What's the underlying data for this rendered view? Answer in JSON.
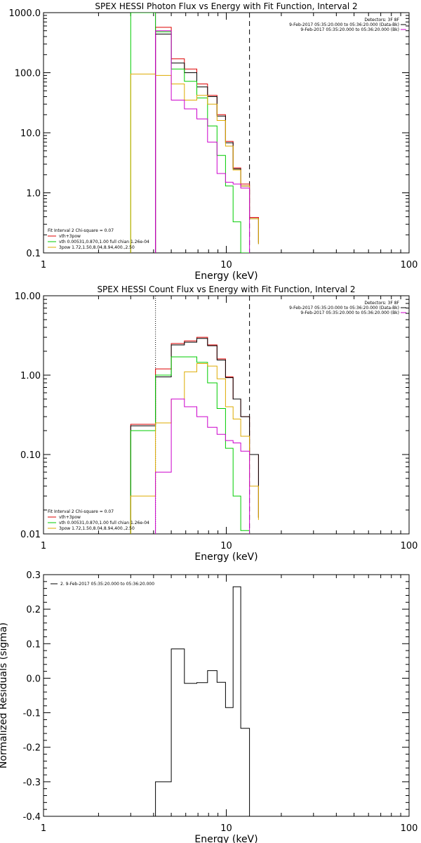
{
  "chart_data": [
    {
      "type": "line",
      "title": "SPEX HESSI Photon Flux vs Energy with Fit Function, Interval 2",
      "xlabel": "Energy (keV)",
      "ylabel": "",
      "xscale": "log",
      "yscale": "log",
      "xlim": [
        1,
        100
      ],
      "ylim": [
        0.1,
        1000
      ],
      "xticks": [
        1,
        10,
        100
      ],
      "xtick_labels": [
        "1",
        "10",
        "100"
      ],
      "yticks": [
        0.1,
        1,
        10,
        100,
        1000
      ],
      "ytick_labels": [
        "0.1",
        "1.0",
        "10.0",
        "100.0",
        "1000.0"
      ],
      "vlines": [
        {
          "x": 4.1,
          "style": "solid",
          "color": "#cc00cc"
        },
        {
          "x": 13.4,
          "style": "dashed",
          "color": "#000000"
        }
      ],
      "legend_topright": [
        {
          "text": "Detectors: 3F 8F",
          "color": "#000000"
        },
        {
          "text": "9-Feb-2017 05:35:20.000 to 05:36:20.000 (Data-Bk)",
          "color": "#000000"
        },
        {
          "text": "9-Feb-2017 05:35:20.000 to 05:36:20.000 (Bk)",
          "color": "#cc00cc"
        }
      ],
      "legend_bottomleft": [
        {
          "text": "Fit Interval 2   Chi-square = 0.07",
          "color": "#000000"
        },
        {
          "text": "vth+3pow",
          "color": "#dd0000"
        },
        {
          "text": "vth 0.00531,0.870,1.00  full chian 1.26e-04",
          "color": "#00cc00"
        },
        {
          "text": "3pow 1.72,1.50,8.04,8.94,400.,2.50",
          "color": "#ddaa00"
        }
      ],
      "bin_edges": [
        3.0,
        4.1,
        5.0,
        5.9,
        6.9,
        7.9,
        8.9,
        9.9,
        10.9,
        12.0,
        13.4,
        15.0
      ],
      "series": [
        {
          "name": "vth+3pow",
          "color": "#dd0000",
          "values": [
            null,
            570,
            170,
            115,
            65,
            42,
            20,
            7.2,
            2.6,
            1.4,
            0.39,
            0.15
          ]
        },
        {
          "name": "",
          "color": "#000000",
          "values": [
            null,
            440,
            145,
            100,
            58,
            40,
            19,
            6.8,
            2.5,
            1.3,
            0.37,
            0.14
          ]
        },
        {
          "name": "",
          "color": "#00cc00",
          "values": [
            1000,
            480,
            115,
            72,
            38,
            13,
            4.2,
            1.3,
            0.33,
            0.1,
            null,
            null
          ]
        },
        {
          "name": "",
          "color": "#ddaa00",
          "values": [
            95,
            90,
            65,
            35,
            42,
            30,
            16,
            6,
            2.4,
            1.3,
            0.37,
            0.14
          ]
        },
        {
          "name": "",
          "color": "#cc00cc",
          "values": [
            null,
            500,
            35,
            25,
            17,
            7,
            2.1,
            1.5,
            1.4,
            1.2,
            null,
            null
          ]
        }
      ]
    },
    {
      "type": "line",
      "title": "SPEX HESSI Count Flux vs Energy with Fit Function, Interval 2",
      "xlabel": "Energy (keV)",
      "ylabel": "",
      "xscale": "log",
      "yscale": "log",
      "xlim": [
        1,
        100
      ],
      "ylim": [
        0.01,
        10
      ],
      "xticks": [
        1,
        10,
        100
      ],
      "xtick_labels": [
        "1",
        "10",
        "100"
      ],
      "yticks": [
        0.01,
        0.1,
        1,
        10
      ],
      "ytick_labels": [
        "0.01",
        "0.10",
        "1.00",
        "10.00"
      ],
      "vlines": [
        {
          "x": 4.1,
          "style": "dotted",
          "color": "#000000"
        },
        {
          "x": 13.4,
          "style": "dashed",
          "color": "#000000"
        }
      ],
      "legend_topright": [
        {
          "text": "Detectors: 3F 8F",
          "color": "#000000"
        },
        {
          "text": "9-Feb-2017 05:35:20.000 to 05:36:20.000 (Data-Bk)",
          "color": "#000000"
        },
        {
          "text": "9-Feb-2017 05:35:20.000 to 05:36:20.000 (Bk)",
          "color": "#cc00cc"
        }
      ],
      "legend_bottomleft": [
        {
          "text": "Fit Interval 2   Chi-square = 0.07",
          "color": "#000000"
        },
        {
          "text": "vth+3pow",
          "color": "#dd0000"
        },
        {
          "text": "vth 0.00531,0.870,1.00  full chian 1.26e-04",
          "color": "#00cc00"
        },
        {
          "text": "3pow 1.72,1.50,8.04,8.94,400.,2.50",
          "color": "#ddaa00"
        }
      ],
      "bin_edges": [
        3.0,
        4.1,
        5.0,
        5.9,
        6.9,
        7.9,
        8.9,
        9.9,
        10.9,
        12.0,
        13.4,
        15.0
      ],
      "series": [
        {
          "name": "vth+3pow",
          "color": "#dd0000",
          "values": [
            0.24,
            1.2,
            2.5,
            2.7,
            3.0,
            2.4,
            1.6,
            0.95,
            0.5,
            0.3,
            0.1,
            0.016
          ]
        },
        {
          "name": "",
          "color": "#000000",
          "values": [
            0.23,
            0.95,
            2.4,
            2.6,
            2.9,
            2.35,
            1.55,
            0.93,
            0.5,
            0.3,
            0.1,
            0.016
          ]
        },
        {
          "name": "",
          "color": "#00cc00",
          "values": [
            0.2,
            1.0,
            1.7,
            1.7,
            1.45,
            0.8,
            0.38,
            0.12,
            0.03,
            0.011,
            null,
            null
          ]
        },
        {
          "name": "",
          "color": "#ddaa00",
          "values": [
            0.03,
            0.25,
            0.5,
            1.1,
            1.4,
            1.3,
            0.9,
            0.4,
            0.28,
            0.17,
            0.04,
            0.015
          ]
        },
        {
          "name": "",
          "color": "#cc00cc",
          "values": [
            null,
            0.06,
            0.5,
            0.4,
            0.3,
            0.22,
            0.18,
            0.15,
            0.14,
            0.11,
            null,
            null
          ]
        }
      ]
    },
    {
      "type": "line",
      "title": "",
      "xlabel": "Energy (keV)",
      "ylabel": "Normalized Residuals (sigma)",
      "xscale": "log",
      "yscale": "linear",
      "xlim": [
        1,
        100
      ],
      "ylim": [
        -0.4,
        0.3
      ],
      "xticks": [
        1,
        10,
        100
      ],
      "xtick_labels": [
        "1",
        "10",
        "100"
      ],
      "yticks": [
        -0.4,
        -0.3,
        -0.2,
        -0.1,
        0.0,
        0.1,
        0.2,
        0.3
      ],
      "ytick_labels": [
        "-0.4",
        "-0.3",
        "-0.2",
        "-0.1",
        "0.0",
        "0.1",
        "0.2",
        "0.3"
      ],
      "legend": [
        {
          "text": "2.  9-Feb-2017 05:35:20.000 to 05:36:20.000",
          "color": "#000000"
        }
      ],
      "bin_edges": [
        4.1,
        5.0,
        5.9,
        6.9,
        7.9,
        8.9,
        9.9,
        10.9,
        12.0,
        13.4
      ],
      "series": [
        {
          "name": "",
          "color": "#000000",
          "values": [
            -0.3,
            0.085,
            -0.015,
            -0.013,
            0.022,
            -0.012,
            -0.085,
            0.265,
            -0.145
          ]
        }
      ]
    }
  ]
}
